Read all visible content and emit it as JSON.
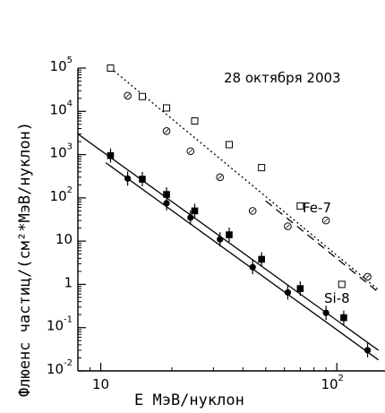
{
  "chart_data": {
    "type": "scatter",
    "title": "28 октября 2003",
    "xlabel": "E МэВ/нуклон",
    "ylabel": "Флюенс частиц/(см²*МэВ/нуклон)",
    "x_scale": "log",
    "y_scale": "log",
    "xlim": [
      8,
      160
    ],
    "ylim": [
      0.01,
      100000
    ],
    "x_ticks": [
      {
        "value": 10,
        "label": "10"
      },
      {
        "value": 100,
        "label": "10",
        "exp": "2"
      }
    ],
    "y_ticks": [
      {
        "value": 100000,
        "label": "10",
        "exp": "5"
      },
      {
        "value": 10000,
        "label": "10",
        "exp": "4"
      },
      {
        "value": 1000,
        "label": "10",
        "exp": "3"
      },
      {
        "value": 100,
        "label": "10",
        "exp": "2"
      },
      {
        "value": 10,
        "label": "10",
        "exp": ""
      },
      {
        "value": 1,
        "label": "1",
        "exp": ""
      },
      {
        "value": 0.1,
        "label": "10",
        "exp": "-1"
      },
      {
        "value": 0.01,
        "label": "10",
        "exp": "-2"
      }
    ],
    "grid": false,
    "annotations": [
      "Fe-7",
      "Si-8"
    ],
    "series": [
      {
        "name": "Fe-7",
        "marker": "open-square",
        "x": [
          11,
          15,
          19,
          25,
          35,
          48,
          70,
          105
        ],
        "y": [
          100000,
          22000,
          12000,
          6000,
          1700,
          500,
          65,
          1.0
        ]
      },
      {
        "name": "Si-8",
        "marker": "open-circle",
        "x": [
          13,
          19,
          24,
          32,
          44,
          62,
          90,
          135
        ],
        "y": [
          23000,
          3500,
          1200,
          300,
          50,
          22,
          30,
          1.5
        ]
      },
      {
        "marker": "filled-square",
        "x": [
          11,
          15,
          19,
          25,
          35,
          48,
          70,
          107
        ],
        "y": [
          950,
          270,
          120,
          50,
          14,
          3.8,
          0.8,
          0.17
        ]
      },
      {
        "marker": "filled-circle",
        "x": [
          13,
          19,
          24,
          32,
          44,
          62,
          90,
          135
        ],
        "y": [
          280,
          75,
          35,
          11,
          2.5,
          0.65,
          0.22,
          0.03
        ]
      }
    ],
    "fit_lines": [
      {
        "style": "dotted",
        "x": [
          11,
          150
        ],
        "y": [
          100000,
          0.75
        ]
      },
      {
        "style": "dashed",
        "x": [
          50,
          148
        ],
        "y": [
          85,
          0.7
        ]
      },
      {
        "style": "solid",
        "x": [
          8,
          150
        ],
        "y": [
          3000,
          0.03
        ]
      },
      {
        "style": "solid",
        "x": [
          10.5,
          150
        ],
        "y": [
          650,
          0.018
        ]
      }
    ]
  }
}
